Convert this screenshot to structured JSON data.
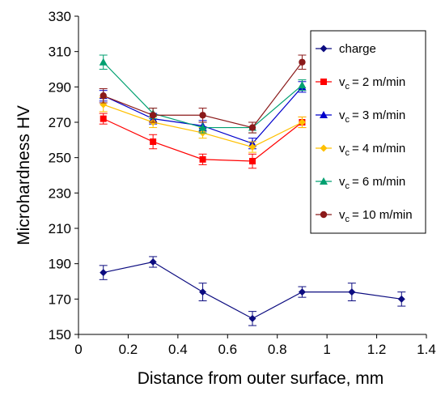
{
  "chart_data": {
    "type": "line",
    "xlabel": "Distance from outer surface, mm",
    "ylabel": "Microhardness HV",
    "xlim": [
      0,
      1.4
    ],
    "ylim": [
      150,
      330
    ],
    "xticks": [
      "0",
      "0.2",
      "0.4",
      "0.6",
      "0.8",
      "1",
      "1.2",
      "1.4"
    ],
    "yticks": [
      "150",
      "170",
      "190",
      "210",
      "230",
      "250",
      "270",
      "290",
      "310",
      "330"
    ],
    "grid": false,
    "legend_position": "top-right",
    "series": [
      {
        "name": "charge",
        "legend_main": "charge",
        "legend_sub": "",
        "legend_rest": "",
        "color": "#0c0c80",
        "marker": "diamond",
        "x": [
          0.1,
          0.3,
          0.5,
          0.7,
          0.9,
          1.1,
          1.3
        ],
        "y": [
          185,
          191,
          174,
          159,
          174,
          174,
          170
        ],
        "err": [
          4,
          3,
          5,
          4,
          3,
          5,
          4
        ]
      },
      {
        "name": "vc = 2 m/min",
        "legend_main": "v",
        "legend_sub": "c",
        "legend_rest": "= 2 m/min",
        "color": "#ff0000",
        "marker": "square",
        "x": [
          0.1,
          0.3,
          0.5,
          0.7,
          0.9
        ],
        "y": [
          272,
          259,
          249,
          248,
          270
        ],
        "err": [
          3,
          4,
          3,
          4,
          3
        ]
      },
      {
        "name": "vc = 3 m/min",
        "legend_main": "v",
        "legend_sub": "c",
        "legend_rest": "= 3 m/min",
        "color": "#0000cc",
        "marker": "triangle",
        "x": [
          0.1,
          0.3,
          0.5,
          0.7,
          0.9
        ],
        "y": [
          285,
          272,
          268,
          258,
          290
        ],
        "err": [
          3,
          3,
          3,
          3,
          3
        ]
      },
      {
        "name": "vc = 4 m/min",
        "legend_main": "v",
        "legend_sub": "c",
        "legend_rest": "= 4 m/min",
        "color": "#ffc000",
        "marker": "diamond",
        "x": [
          0.1,
          0.3,
          0.5,
          0.7,
          0.9
        ],
        "y": [
          280,
          270,
          264,
          256,
          270
        ],
        "err": [
          4,
          3,
          3,
          3,
          3
        ]
      },
      {
        "name": "vc = 6 m/min",
        "legend_main": "v",
        "legend_sub": "c",
        "legend_rest": "= 6 m/min",
        "color": "#00a070",
        "marker": "triangle",
        "x": [
          0.1,
          0.3,
          0.5,
          0.7,
          0.9
        ],
        "y": [
          304,
          275,
          267,
          267,
          291
        ],
        "err": [
          4,
          3,
          3,
          3,
          3
        ]
      },
      {
        "name": "vc = 10 m/min",
        "legend_main": "v",
        "legend_sub": "c",
        "legend_rest": "= 10 m/min",
        "color": "#8b1a1a",
        "marker": "circle",
        "x": [
          0.1,
          0.3,
          0.5,
          0.7,
          0.9
        ],
        "y": [
          285,
          274,
          274,
          267,
          304
        ],
        "err": [
          4,
          4,
          4,
          3,
          4
        ]
      }
    ]
  }
}
